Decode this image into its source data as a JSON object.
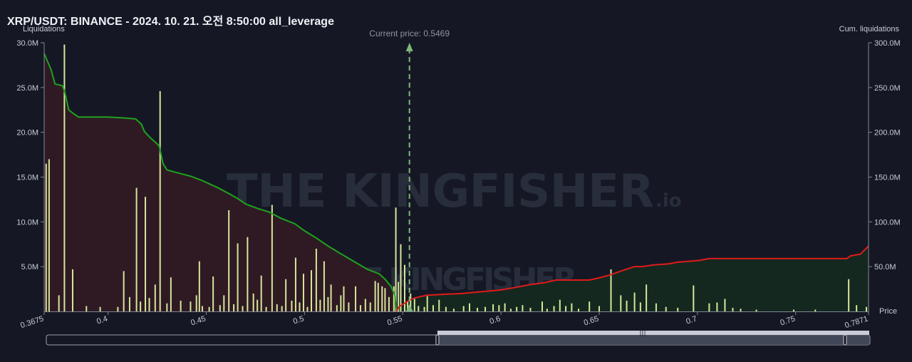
{
  "header": {
    "title": "XRP/USDT: BINANCE - 2024. 10. 21. 오전 8:50:00 all_leverage"
  },
  "watermark": {
    "text_main": "THE KINGFISHER",
    "text_suffix": ".io"
  },
  "chart_data": {
    "type": "bar",
    "title": "XRP/USDT: BINANCE - 2024. 10. 21. 오전 8:50:00 all_leverage",
    "ylabel_left": "Liquidations",
    "ylabel_right": "Cum. liquidations",
    "xlabel": "Price",
    "current_price_label": "Current price: 0.5469",
    "current_price": 0.5469,
    "xlim": [
      0.3675,
      0.7871
    ],
    "ylim_left": [
      0,
      30000000
    ],
    "ylim_right": [
      0,
      300000000
    ],
    "x_ticks": [
      {
        "value": 0.3675,
        "label": "0.3675"
      },
      {
        "value": 0.4,
        "label": "0.4"
      },
      {
        "value": 0.45,
        "label": "0.45"
      },
      {
        "value": 0.5,
        "label": "0.5"
      },
      {
        "value": 0.55,
        "label": "0.55"
      },
      {
        "value": 0.6,
        "label": "0.6"
      },
      {
        "value": 0.65,
        "label": "0.65"
      },
      {
        "value": 0.7,
        "label": "0.7"
      },
      {
        "value": 0.75,
        "label": "0.75"
      },
      {
        "value": 0.7871,
        "label": "0.7871"
      }
    ],
    "y_ticks_left": [
      {
        "value": 5000000,
        "label": "5.0M"
      },
      {
        "value": 10000000,
        "label": "10.0M"
      },
      {
        "value": 15000000,
        "label": "15.0M"
      },
      {
        "value": 20000000,
        "label": "20.0M"
      },
      {
        "value": 25000000,
        "label": "25.0M"
      },
      {
        "value": 30000000,
        "label": "30.0M"
      }
    ],
    "y_ticks_right": [
      {
        "value": 50000000,
        "label": "50.0M"
      },
      {
        "value": 100000000,
        "label": "100.0M"
      },
      {
        "value": 150000000,
        "label": "150.0M"
      },
      {
        "value": 200000000,
        "label": "200.0M"
      },
      {
        "value": 250000000,
        "label": "250.0M"
      },
      {
        "value": 300000000,
        "label": "300.0M"
      }
    ],
    "bars": [
      [
        0.3685,
        16.5
      ],
      [
        0.37,
        17.0
      ],
      [
        0.375,
        1.8
      ],
      [
        0.3778,
        29.8
      ],
      [
        0.382,
        4.7
      ],
      [
        0.389,
        0.6
      ],
      [
        0.396,
        0.5
      ],
      [
        0.405,
        0.5
      ],
      [
        0.408,
        4.5
      ],
      [
        0.411,
        1.6
      ],
      [
        0.4145,
        13.8
      ],
      [
        0.4165,
        1.1
      ],
      [
        0.419,
        12.8
      ],
      [
        0.421,
        1.5
      ],
      [
        0.424,
        3.0
      ],
      [
        0.4265,
        24.6
      ],
      [
        0.43,
        0.9
      ],
      [
        0.432,
        3.8
      ],
      [
        0.437,
        1.2
      ],
      [
        0.442,
        1.1
      ],
      [
        0.445,
        1.8
      ],
      [
        0.4465,
        5.6
      ],
      [
        0.448,
        0.6
      ],
      [
        0.4515,
        0.5
      ],
      [
        0.4535,
        3.9
      ],
      [
        0.457,
        0.7
      ],
      [
        0.459,
        1.8
      ],
      [
        0.4615,
        11.3
      ],
      [
        0.464,
        0.8
      ],
      [
        0.466,
        7.6
      ],
      [
        0.4685,
        0.6
      ],
      [
        0.471,
        8.3
      ],
      [
        0.474,
        2.0
      ],
      [
        0.476,
        1.3
      ],
      [
        0.478,
        4.0
      ],
      [
        0.4805,
        0.5
      ],
      [
        0.4835,
        11.9
      ],
      [
        0.486,
        0.8
      ],
      [
        0.4885,
        0.6
      ],
      [
        0.4905,
        3.6
      ],
      [
        0.4935,
        1.2
      ],
      [
        0.4955,
        6.0
      ],
      [
        0.4975,
        1.0
      ],
      [
        0.4995,
        4.2
      ],
      [
        0.5015,
        0.5
      ],
      [
        0.5035,
        4.6
      ],
      [
        0.506,
        7.0
      ],
      [
        0.508,
        1.3
      ],
      [
        0.51,
        5.6
      ],
      [
        0.512,
        1.6
      ],
      [
        0.5135,
        3.0
      ],
      [
        0.5165,
        0.7
      ],
      [
        0.5185,
        1.8
      ],
      [
        0.52,
        2.8
      ],
      [
        0.5225,
        1.0
      ],
      [
        0.526,
        2.8
      ],
      [
        0.5285,
        0.7
      ],
      [
        0.531,
        1.4
      ],
      [
        0.5335,
        1.0
      ],
      [
        0.536,
        3.4
      ],
      [
        0.5375,
        3.2
      ],
      [
        0.5395,
        2.8
      ],
      [
        0.541,
        2.6
      ],
      [
        0.543,
        1.6
      ],
      [
        0.5455,
        2.8
      ],
      [
        0.5465,
        11.6
      ],
      [
        0.5478,
        3.3
      ],
      [
        0.549,
        7.5
      ],
      [
        0.551,
        5.2
      ],
      [
        0.5525,
        1.1
      ],
      [
        0.554,
        2.0
      ],
      [
        0.556,
        1.4
      ],
      [
        0.558,
        0.6
      ],
      [
        0.561,
        0.5
      ],
      [
        0.5625,
        1.7
      ],
      [
        0.5655,
        0.7
      ],
      [
        0.5685,
        1.3
      ],
      [
        0.572,
        0.5
      ],
      [
        0.576,
        0.3
      ],
      [
        0.581,
        0.6
      ],
      [
        0.584,
        0.9
      ],
      [
        0.588,
        0.4
      ],
      [
        0.592,
        0.5
      ],
      [
        0.596,
        0.8
      ],
      [
        0.599,
        0.7
      ],
      [
        0.602,
        0.9
      ],
      [
        0.605,
        0.3
      ],
      [
        0.608,
        0.5
      ],
      [
        0.611,
        0.7
      ],
      [
        0.615,
        0.4
      ],
      [
        0.621,
        1.1
      ],
      [
        0.6235,
        0.3
      ],
      [
        0.627,
        0.6
      ],
      [
        0.63,
        1.3
      ],
      [
        0.633,
        0.6
      ],
      [
        0.636,
        0.9
      ],
      [
        0.6395,
        0.3
      ],
      [
        0.645,
        1.1
      ],
      [
        0.65,
        0.6
      ],
      [
        0.656,
        4.7
      ],
      [
        0.661,
        1.8
      ],
      [
        0.664,
        1.2
      ],
      [
        0.668,
        2.1
      ],
      [
        0.671,
        1.0
      ],
      [
        0.674,
        3.0
      ],
      [
        0.679,
        0.9
      ],
      [
        0.684,
        0.5
      ],
      [
        0.69,
        0.4
      ],
      [
        0.698,
        2.9
      ],
      [
        0.706,
        0.9
      ],
      [
        0.71,
        1.0
      ],
      [
        0.714,
        1.4
      ],
      [
        0.718,
        0.4
      ],
      [
        0.722,
        0.3
      ],
      [
        0.73,
        0.2
      ],
      [
        0.749,
        0.2
      ],
      [
        0.76,
        0.2
      ],
      [
        0.777,
        3.6
      ],
      [
        0.781,
        0.7
      ],
      [
        0.786,
        0.5
      ]
    ],
    "cum_long": [
      [
        0.3675,
        288
      ],
      [
        0.371,
        270
      ],
      [
        0.373,
        254
      ],
      [
        0.3768,
        252
      ],
      [
        0.378,
        245
      ],
      [
        0.38,
        225
      ],
      [
        0.383,
        220
      ],
      [
        0.385,
        217
      ],
      [
        0.4,
        217
      ],
      [
        0.408,
        216
      ],
      [
        0.414,
        215
      ],
      [
        0.417,
        209
      ],
      [
        0.4185,
        201
      ],
      [
        0.421,
        195
      ],
      [
        0.426,
        185
      ],
      [
        0.428,
        165
      ],
      [
        0.43,
        158
      ],
      [
        0.435,
        155
      ],
      [
        0.442,
        151
      ],
      [
        0.448,
        146
      ],
      [
        0.452,
        142
      ],
      [
        0.456,
        138
      ],
      [
        0.462,
        131
      ],
      [
        0.466,
        126
      ],
      [
        0.47,
        120
      ],
      [
        0.476,
        115
      ],
      [
        0.482,
        111
      ],
      [
        0.488,
        104
      ],
      [
        0.495,
        98
      ],
      [
        0.5,
        90
      ],
      [
        0.506,
        82
      ],
      [
        0.512,
        73
      ],
      [
        0.518,
        65
      ],
      [
        0.525,
        56
      ],
      [
        0.532,
        47
      ],
      [
        0.538,
        42
      ],
      [
        0.541,
        36
      ],
      [
        0.544,
        28
      ],
      [
        0.546,
        18
      ],
      [
        0.5469,
        0
      ]
    ],
    "cum_short": [
      [
        0.5469,
        0
      ],
      [
        0.548,
        5
      ],
      [
        0.553,
        12
      ],
      [
        0.556,
        15
      ],
      [
        0.562,
        18
      ],
      [
        0.57,
        19
      ],
      [
        0.58,
        20
      ],
      [
        0.59,
        22
      ],
      [
        0.6,
        24
      ],
      [
        0.608,
        27
      ],
      [
        0.615,
        30
      ],
      [
        0.622,
        32
      ],
      [
        0.628,
        35
      ],
      [
        0.635,
        35
      ],
      [
        0.645,
        35
      ],
      [
        0.651,
        38
      ],
      [
        0.656,
        41
      ],
      [
        0.661,
        45
      ],
      [
        0.668,
        50
      ],
      [
        0.672,
        50
      ],
      [
        0.678,
        52
      ],
      [
        0.685,
        53
      ],
      [
        0.69,
        55
      ],
      [
        0.696,
        56
      ],
      [
        0.701,
        57
      ],
      [
        0.706,
        59
      ],
      [
        0.715,
        59
      ],
      [
        0.73,
        59
      ],
      [
        0.75,
        59
      ],
      [
        0.765,
        59
      ],
      [
        0.776,
        59
      ],
      [
        0.778,
        62
      ],
      [
        0.783,
        64
      ],
      [
        0.7871,
        73
      ]
    ],
    "colors": {
      "background": "#151824",
      "bar": "#d6e69a",
      "long_line": "#1ea31e",
      "long_fill": "#2f1a24",
      "short_line": "#e01b1b",
      "short_fill": "#15281f",
      "current_price": "#7fb77a",
      "axis": "#7f8596"
    },
    "grid": false,
    "scrollbar": {
      "range_start_fraction": 0.4748,
      "range_end_fraction": 1.0
    }
  }
}
